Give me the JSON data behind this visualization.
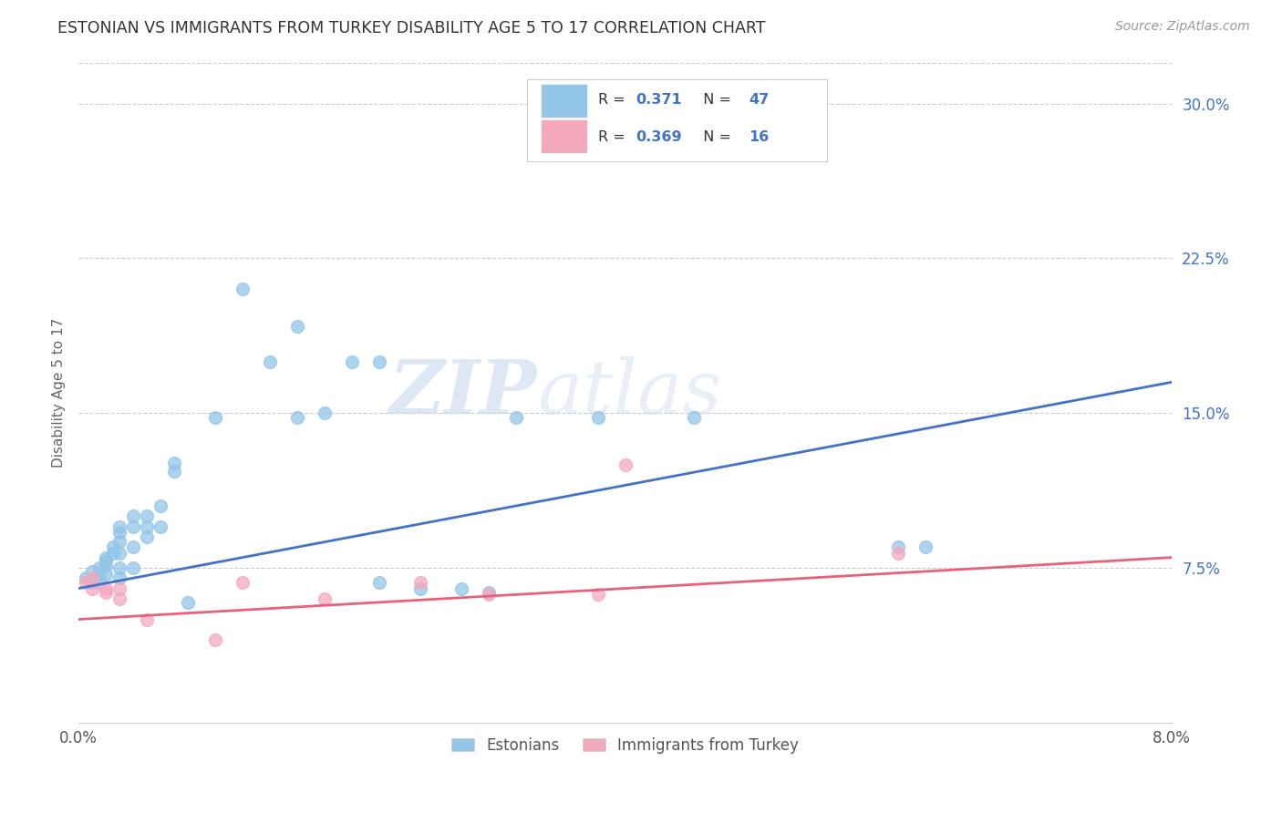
{
  "title": "ESTONIAN VS IMMIGRANTS FROM TURKEY DISABILITY AGE 5 TO 17 CORRELATION CHART",
  "source": "Source: ZipAtlas.com",
  "ylabel": "Disability Age 5 to 17",
  "xlim": [
    0.0,
    0.08
  ],
  "ylim": [
    0.0,
    0.32
  ],
  "ytick_positions": [
    0.075,
    0.15,
    0.225,
    0.3
  ],
  "ytick_labels": [
    "7.5%",
    "15.0%",
    "22.5%",
    "30.0%"
  ],
  "grid_color": "#cccccc",
  "background_color": "#ffffff",
  "estonian_color": "#92C5E8",
  "immigrant_color": "#F4A8BE",
  "line_estonian_color": "#4472C4",
  "line_immigrant_color": "#E8607A",
  "legend_estonian_label": "Estonians",
  "legend_immigrant_label": "Immigrants from Turkey",
  "R_estonian": "0.371",
  "N_estonian": "47",
  "R_immigrant": "0.369",
  "N_immigrant": "16",
  "estonian_x": [
    0.0005,
    0.001,
    0.001,
    0.0015,
    0.0015,
    0.0015,
    0.002,
    0.002,
    0.002,
    0.002,
    0.0025,
    0.0025,
    0.003,
    0.003,
    0.003,
    0.003,
    0.003,
    0.003,
    0.004,
    0.004,
    0.004,
    0.004,
    0.005,
    0.005,
    0.005,
    0.006,
    0.006,
    0.007,
    0.007,
    0.008,
    0.01,
    0.012,
    0.014,
    0.016,
    0.016,
    0.018,
    0.02,
    0.022,
    0.022,
    0.025,
    0.028,
    0.03,
    0.032,
    0.038,
    0.045,
    0.06,
    0.062
  ],
  "estonian_y": [
    0.07,
    0.068,
    0.073,
    0.07,
    0.068,
    0.075,
    0.076,
    0.072,
    0.078,
    0.08,
    0.082,
    0.085,
    0.07,
    0.075,
    0.082,
    0.088,
    0.092,
    0.095,
    0.075,
    0.085,
    0.095,
    0.1,
    0.09,
    0.095,
    0.1,
    0.095,
    0.105,
    0.122,
    0.126,
    0.058,
    0.148,
    0.21,
    0.175,
    0.192,
    0.148,
    0.15,
    0.175,
    0.175,
    0.068,
    0.065,
    0.065,
    0.063,
    0.148,
    0.148,
    0.148,
    0.085,
    0.085
  ],
  "immigrant_x": [
    0.0005,
    0.001,
    0.001,
    0.002,
    0.002,
    0.003,
    0.003,
    0.005,
    0.01,
    0.012,
    0.018,
    0.025,
    0.03,
    0.038,
    0.04,
    0.06
  ],
  "immigrant_y": [
    0.068,
    0.065,
    0.07,
    0.065,
    0.063,
    0.06,
    0.065,
    0.05,
    0.04,
    0.068,
    0.06,
    0.068,
    0.062,
    0.062,
    0.125,
    0.082
  ],
  "watermark_zip": "ZIP",
  "watermark_atlas": "atlas",
  "figsize": [
    14.06,
    8.92
  ],
  "dpi": 100
}
